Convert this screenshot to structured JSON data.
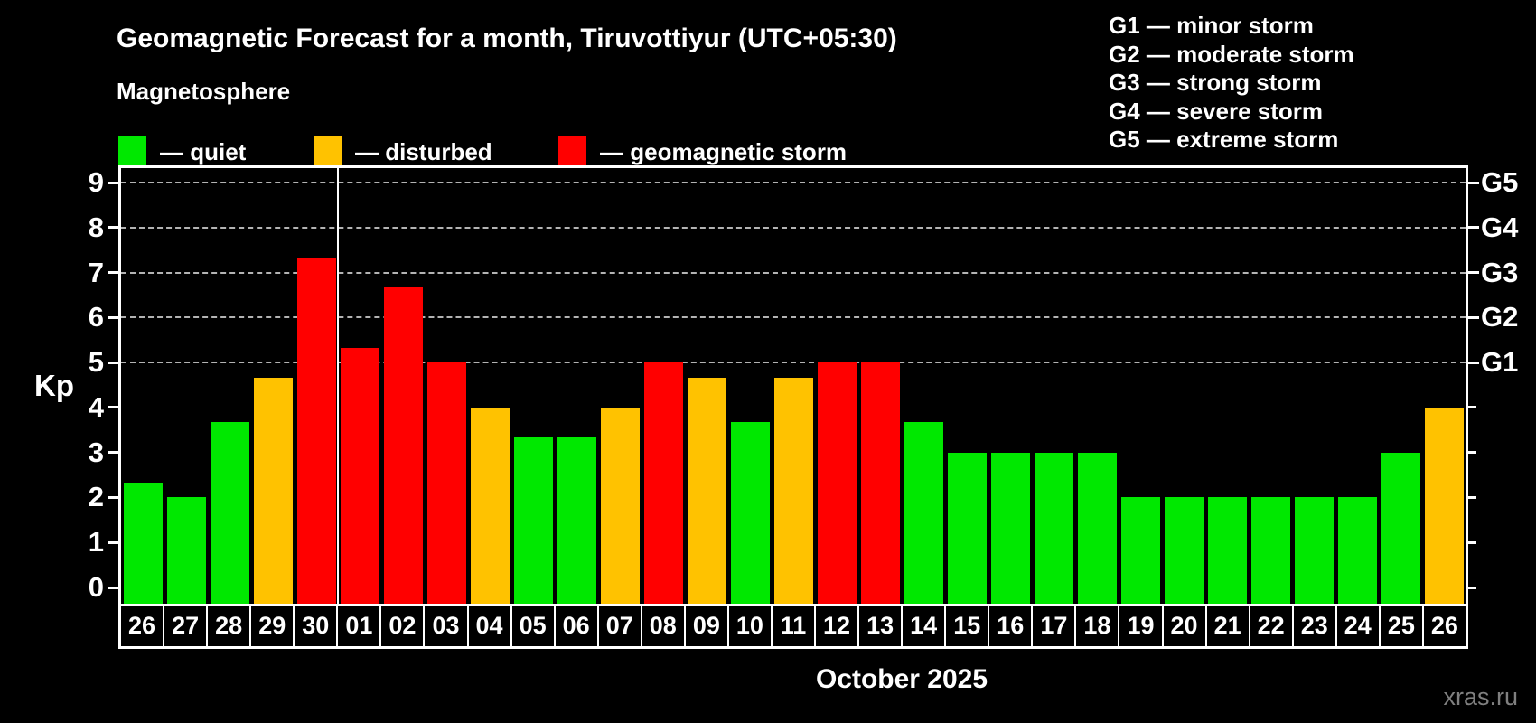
{
  "header": {
    "subtitle": "Magnetosphere"
  },
  "legend": {
    "items": [
      {
        "label": "— quiet",
        "status": "quiet"
      },
      {
        "label": "— disturbed",
        "status": "disturbed"
      },
      {
        "label": "— geomagnetic storm",
        "status": "storm"
      }
    ]
  },
  "g_scale_legend": [
    "G1 — minor storm",
    "G2 — moderate storm",
    "G3 — strong storm",
    "G4 — severe storm",
    "G5 — extreme storm"
  ],
  "colors": {
    "quiet": "#00e800",
    "disturbed": "#ffc200",
    "storm": "#ff0000",
    "grid": "#b3b3b3",
    "axis": "#ffffff",
    "watermark_text": "#7f7f7f"
  },
  "watermark": "xras.ru",
  "chart_data": {
    "type": "bar",
    "title": "Geomagnetic Forecast for a month, Tiruvottiyur (UTC+05:30)",
    "ylabel": "Kp",
    "xlabel": "October 2025",
    "ylim": [
      0,
      9
    ],
    "y_ticks": [
      0,
      1,
      2,
      3,
      4,
      5,
      6,
      7,
      8,
      9
    ],
    "gridlines_at": [
      5,
      6,
      7,
      8,
      9
    ],
    "right_axis_labels": {
      "5": "G1",
      "6": "G2",
      "7": "G3",
      "8": "G4",
      "9": "G5"
    },
    "legend_position": "top-left",
    "grid": "dashed horizontal at storm levels only",
    "categories": [
      "26",
      "27",
      "28",
      "29",
      "30",
      "01",
      "02",
      "03",
      "04",
      "05",
      "06",
      "07",
      "08",
      "09",
      "10",
      "11",
      "12",
      "13",
      "14",
      "15",
      "16",
      "17",
      "18",
      "19",
      "20",
      "21",
      "22",
      "23",
      "24",
      "25",
      "26"
    ],
    "values": [
      2.33,
      2,
      3.67,
      4.67,
      7.33,
      5.33,
      6.67,
      5,
      4,
      3.33,
      3.33,
      4,
      5,
      4.67,
      3.67,
      4.67,
      5,
      5,
      3.67,
      3,
      3,
      3,
      3,
      2,
      2,
      2,
      2,
      2,
      2,
      3,
      4
    ],
    "status": [
      "quiet",
      "quiet",
      "quiet",
      "disturbed",
      "storm",
      "storm",
      "storm",
      "storm",
      "disturbed",
      "quiet",
      "quiet",
      "disturbed",
      "storm",
      "disturbed",
      "quiet",
      "disturbed",
      "storm",
      "storm",
      "quiet",
      "quiet",
      "quiet",
      "quiet",
      "quiet",
      "quiet",
      "quiet",
      "quiet",
      "quiet",
      "quiet",
      "quiet",
      "quiet",
      "disturbed"
    ],
    "month_separator_after_index": 4
  }
}
